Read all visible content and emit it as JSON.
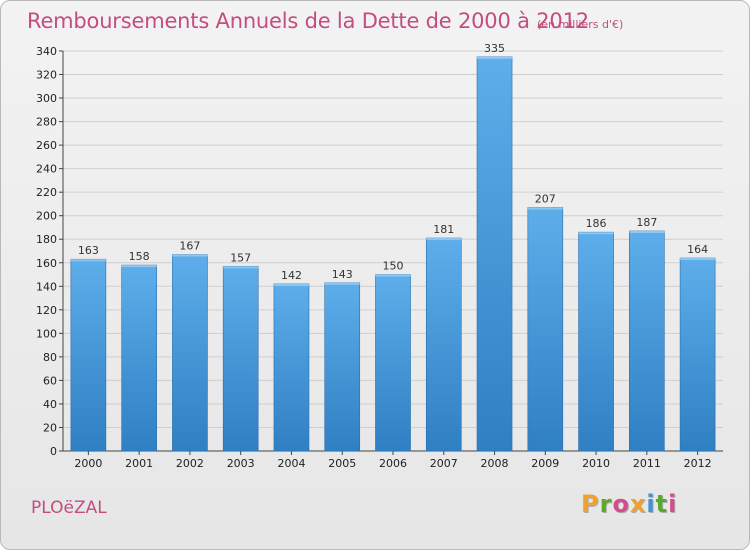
{
  "chart_data": {
    "type": "bar",
    "title": "Remboursements Annuels de la Dette de 2000 à 2012",
    "subtitle": "(en milliers d'€)",
    "categories": [
      "2000",
      "2001",
      "2002",
      "2003",
      "2004",
      "2005",
      "2006",
      "2007",
      "2008",
      "2009",
      "2010",
      "2011",
      "2012"
    ],
    "values": [
      163,
      158,
      167,
      157,
      142,
      143,
      150,
      181,
      335,
      207,
      186,
      187,
      164
    ],
    "ylim": [
      0,
      340
    ],
    "yticks": [
      0,
      20,
      40,
      60,
      80,
      100,
      120,
      140,
      160,
      180,
      200,
      220,
      240,
      260,
      280,
      300,
      320,
      340
    ],
    "xlabel": "",
    "ylabel": "",
    "grid": true,
    "bar_color": "#3f93d6"
  },
  "footer": {
    "commune": "PLOëZAL",
    "brand": "Proxiti"
  },
  "colors": {
    "title": "#c44d7e",
    "brand_letters": [
      "#f0a030",
      "#5aaa2a",
      "#d64b8b",
      "#f0a030",
      "#3f93d6",
      "#5aaa2a",
      "#d64b8b"
    ]
  }
}
